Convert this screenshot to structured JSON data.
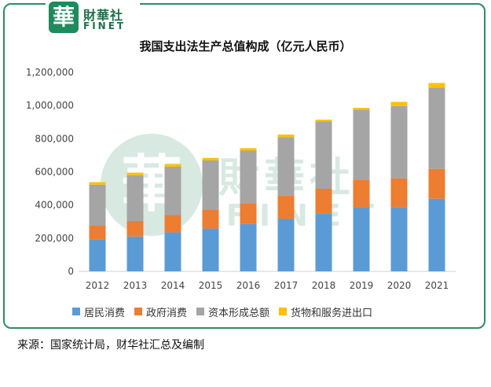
{
  "brand": {
    "seal_char": "華",
    "name_cn": "財華社",
    "name_en": "FINET"
  },
  "colors": {
    "border": "#2e8b63",
    "series": [
      "#5b9bd5",
      "#ed7d31",
      "#a5a5a5",
      "#ffc000"
    ]
  },
  "chart_data": {
    "type": "bar",
    "stacked": true,
    "title": "我国支出法生产总值构成（亿元人民币）",
    "categories": [
      "2012",
      "2013",
      "2014",
      "2015",
      "2016",
      "2017",
      "2018",
      "2019",
      "2020",
      "2021"
    ],
    "series": [
      {
        "name": "居民消费",
        "values": [
          190000,
          210000,
          235000,
          258000,
          285000,
          318000,
          350000,
          388000,
          388000,
          438000
        ]
      },
      {
        "name": "政府消费",
        "values": [
          85000,
          95000,
          104000,
          114000,
          125000,
          137000,
          148000,
          162000,
          172000,
          180000
        ]
      },
      {
        "name": "资本形成总额",
        "values": [
          248000,
          275000,
          292000,
          297000,
          318000,
          355000,
          407000,
          426000,
          437000,
          490000
        ]
      },
      {
        "name": "货物和服务进出口",
        "values": [
          15000,
          15000,
          15000,
          15000,
          15000,
          15000,
          10000,
          10000,
          25000,
          28000
        ]
      }
    ],
    "yticks": [
      "0",
      "200,000",
      "400,000",
      "600,000",
      "800,000",
      "1,000,000",
      "1,200,000"
    ],
    "ylim": [
      0,
      1200000
    ],
    "grid": false,
    "legend": "bottom"
  },
  "source_text": "来源：国家统计局，财华社汇总及编制"
}
